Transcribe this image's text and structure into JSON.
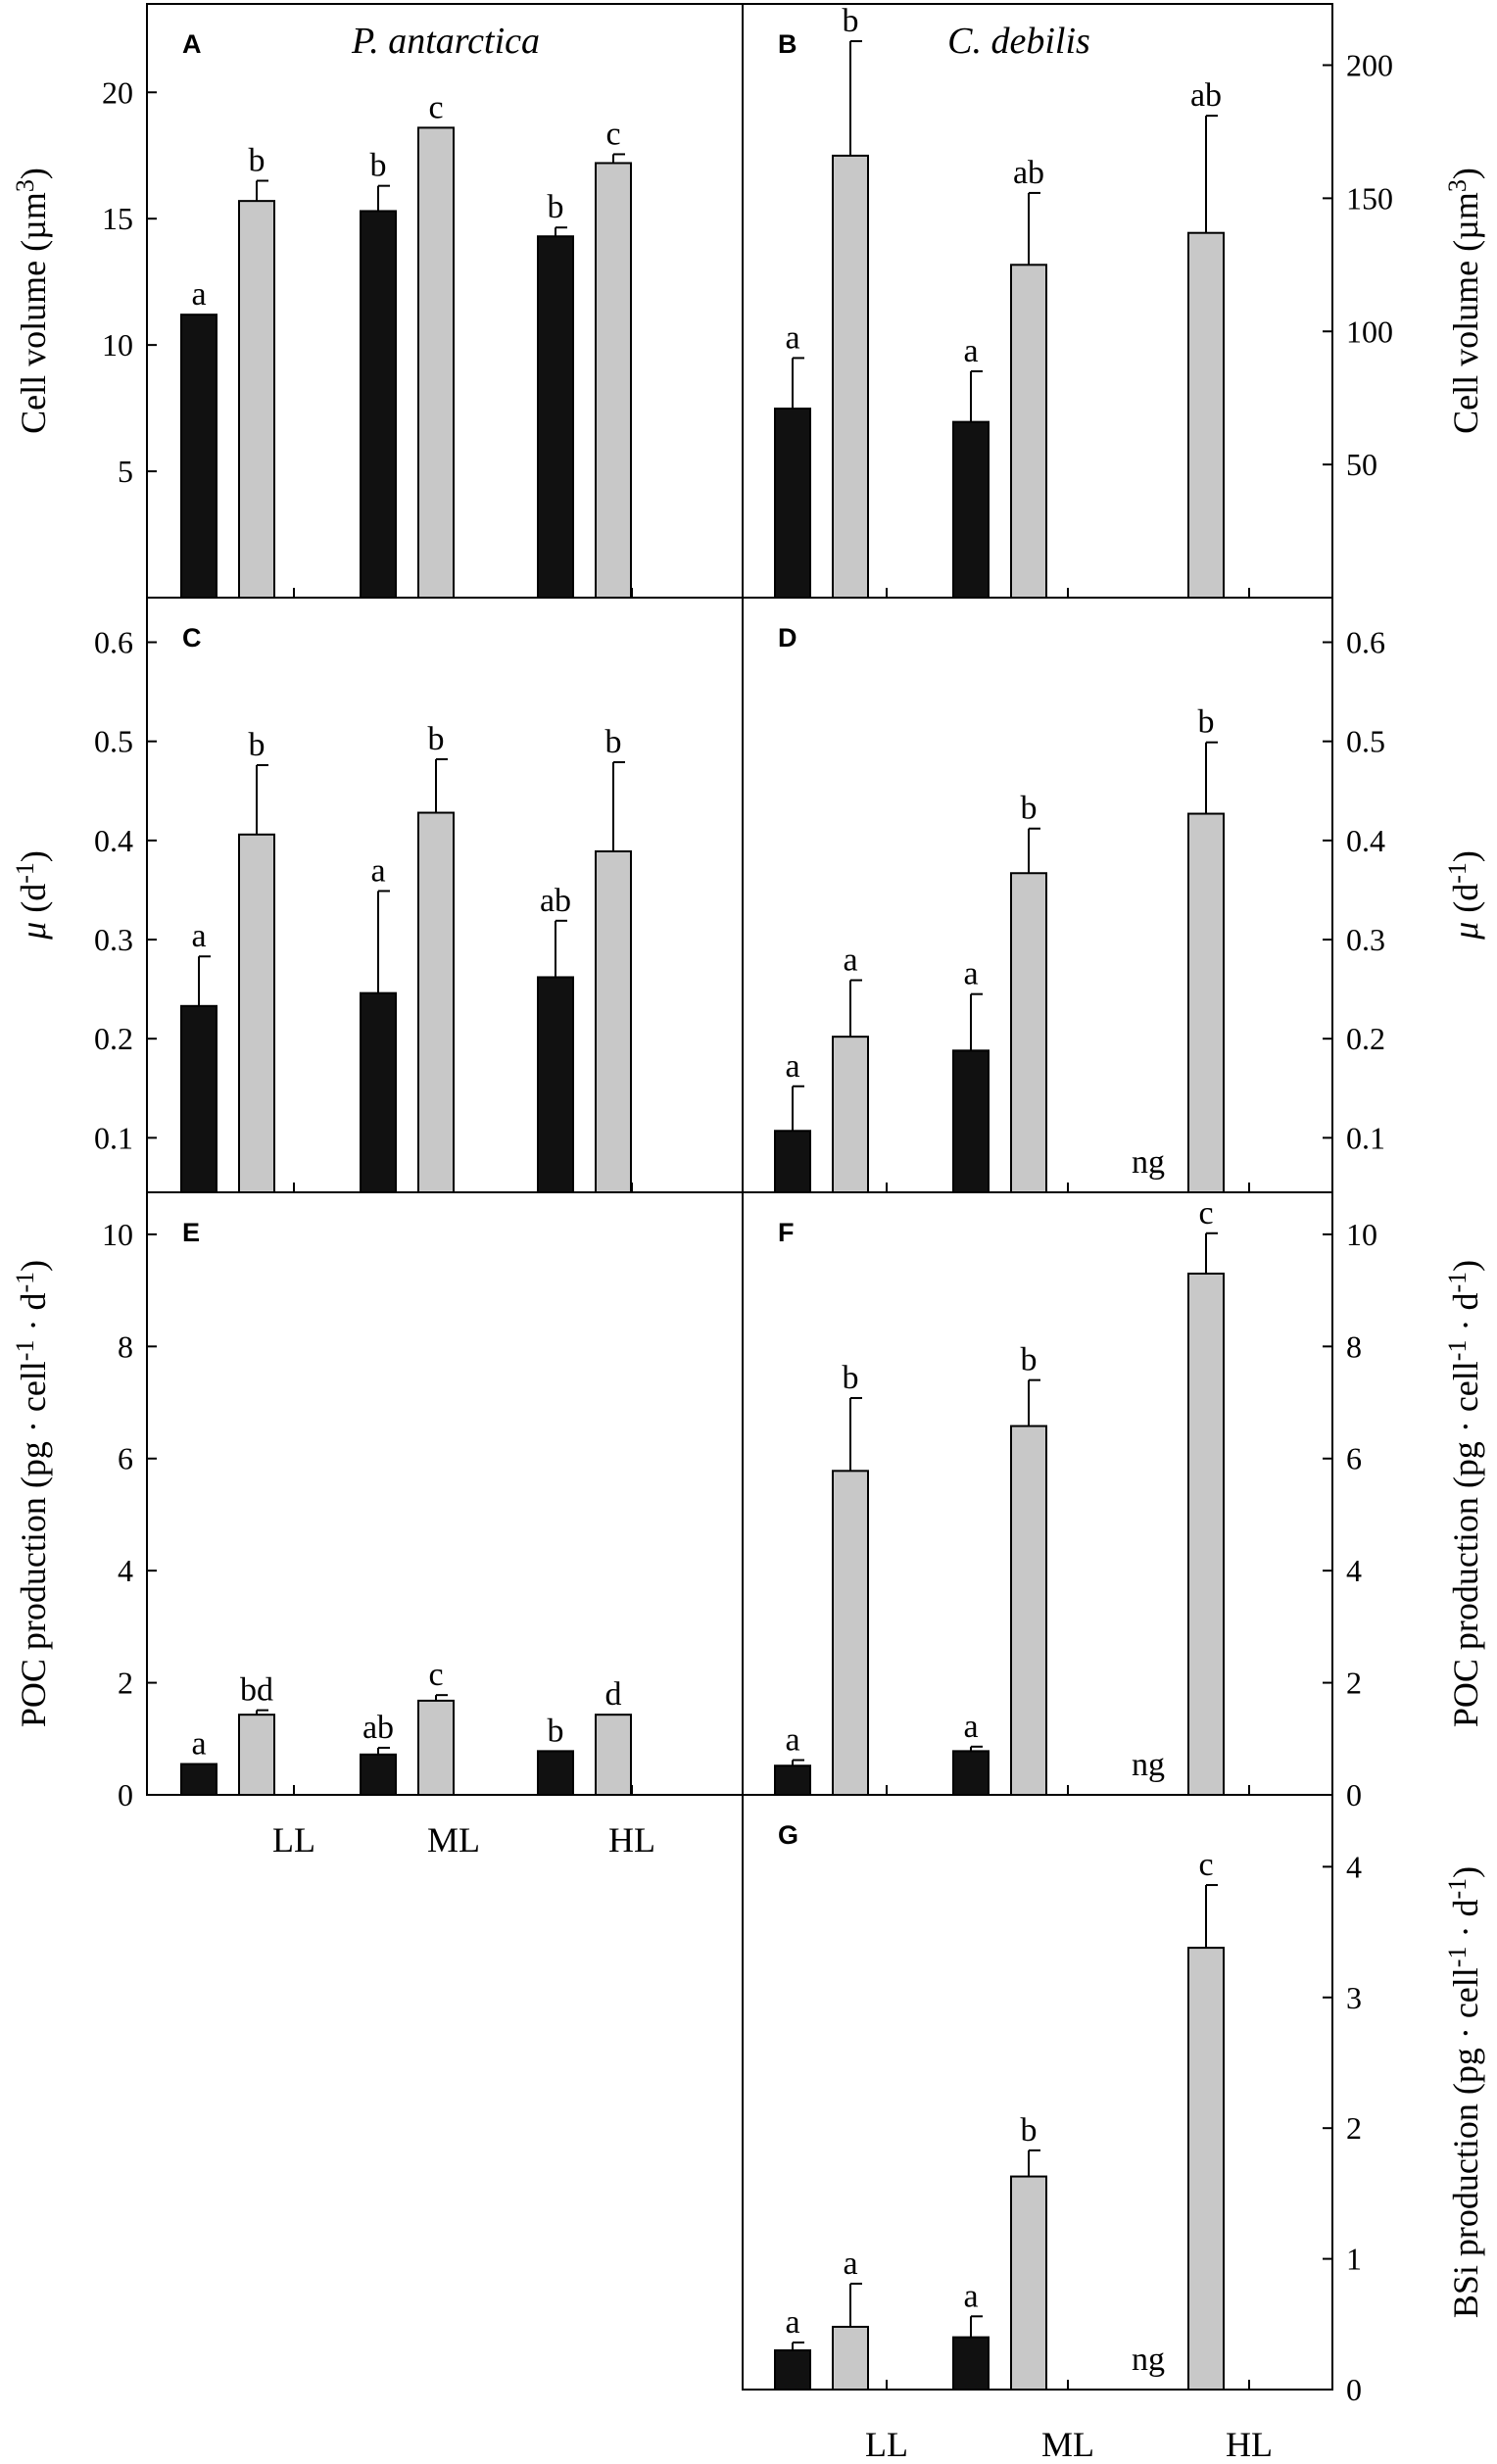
{
  "colors": {
    "dark": "#111111",
    "light": "#c8c8c8",
    "axis": "#000000"
  },
  "chart_data": [
    {
      "id": "A",
      "type": "bar",
      "species": "P. antarctica",
      "ylabel": "Cell volume (µm³)",
      "ylabel_parts": [
        "Cell volume (µm",
        "3",
        ")"
      ],
      "ylim": [
        0,
        23.5
      ],
      "yticks": [
        5,
        10,
        15,
        20
      ],
      "tick_labels": [
        "5",
        "10",
        "15",
        "20"
      ],
      "categories": [
        "LL",
        "ML",
        "HL"
      ],
      "series": [
        {
          "name": "dark",
          "values": [
            11.2,
            15.3,
            14.3
          ],
          "errors": [
            0,
            1.0,
            0.35
          ],
          "letters": [
            "a",
            "b",
            "b"
          ]
        },
        {
          "name": "light",
          "values": [
            15.7,
            18.6,
            17.2
          ],
          "errors": [
            0.8,
            0,
            0.35
          ],
          "letters": [
            "b",
            "c",
            "c"
          ]
        }
      ]
    },
    {
      "id": "B",
      "type": "bar",
      "species": "C. debilis",
      "ylabel": "Cell volume (µm³)",
      "ylabel_parts": [
        "Cell volume (µm",
        "3",
        ")"
      ],
      "ylim": [
        0,
        223
      ],
      "yticks": [
        50,
        100,
        150,
        200
      ],
      "tick_labels": [
        "50",
        "100",
        "150",
        "200"
      ],
      "categories": [
        "LL",
        "ML",
        "HL"
      ],
      "series": [
        {
          "name": "dark",
          "values": [
            71,
            66,
            null
          ],
          "errors": [
            19,
            19,
            0
          ],
          "letters": [
            "a",
            "a",
            ""
          ]
        },
        {
          "name": "light",
          "values": [
            166,
            125,
            137
          ],
          "errors": [
            43,
            27,
            44
          ],
          "letters": [
            "b",
            "ab",
            "ab"
          ]
        }
      ]
    },
    {
      "id": "C",
      "type": "bar",
      "ylabel": "μ (d⁻¹)",
      "ylabel_parts": [
        "μ",
        " (d",
        "-1",
        ")"
      ],
      "ylim": [
        0.045,
        0.645
      ],
      "yticks": [
        0.1,
        0.2,
        0.3,
        0.4,
        0.5,
        0.6
      ],
      "tick_labels": [
        "0.1",
        "0.2",
        "0.3",
        "0.4",
        "0.5",
        "0.6"
      ],
      "categories": [
        "LL",
        "ML",
        "HL"
      ],
      "series": [
        {
          "name": "dark",
          "values": [
            0.233,
            0.246,
            0.262
          ],
          "errors": [
            0.05,
            0.103,
            0.057
          ],
          "letters": [
            "a",
            "a",
            "ab"
          ]
        },
        {
          "name": "light",
          "values": [
            0.406,
            0.428,
            0.389
          ],
          "errors": [
            0.07,
            0.054,
            0.09
          ],
          "letters": [
            "b",
            "b",
            "b"
          ]
        }
      ]
    },
    {
      "id": "D",
      "type": "bar",
      "ylabel": "μ (d⁻¹)",
      "ylabel_parts": [
        "μ",
        " (d",
        "-1",
        ")"
      ],
      "ylim": [
        0.045,
        0.645
      ],
      "yticks": [
        0.1,
        0.2,
        0.3,
        0.4,
        0.5,
        0.6
      ],
      "tick_labels": [
        "0.1",
        "0.2",
        "0.3",
        "0.4",
        "0.5",
        "0.6"
      ],
      "categories": [
        "LL",
        "ML",
        "HL"
      ],
      "series": [
        {
          "name": "dark",
          "values": [
            0.107,
            0.188,
            null
          ],
          "errors": [
            0.045,
            0.057,
            0
          ],
          "letters": [
            "a",
            "a",
            "ng"
          ]
        },
        {
          "name": "light",
          "values": [
            0.202,
            0.367,
            0.427
          ],
          "errors": [
            0.057,
            0.045,
            0.072
          ],
          "letters": [
            "a",
            "b",
            "b"
          ]
        }
      ]
    },
    {
      "id": "E",
      "type": "bar",
      "ylabel": "POC production (pg · cell⁻¹ · d⁻¹)",
      "ylabel_parts": [
        "POC production (pg · cell",
        "-1",
        " · d",
        "-1",
        ")"
      ],
      "ylim": [
        0,
        10.75
      ],
      "yticks": [
        0,
        2,
        4,
        6,
        8,
        10
      ],
      "tick_labels": [
        "0",
        "2",
        "4",
        "6",
        "8",
        "10"
      ],
      "categories": [
        "LL",
        "ML",
        "HL"
      ],
      "series": [
        {
          "name": "dark",
          "values": [
            0.55,
            0.72,
            0.78
          ],
          "errors": [
            0,
            0.12,
            0
          ],
          "letters": [
            "a",
            "ab",
            "b"
          ]
        },
        {
          "name": "light",
          "values": [
            1.43,
            1.68,
            1.43
          ],
          "errors": [
            0.08,
            0.1,
            0
          ],
          "letters": [
            "bd",
            "c",
            "d"
          ]
        }
      ]
    },
    {
      "id": "F",
      "type": "bar",
      "ylabel": "POC production (pg · cell⁻¹ · d⁻¹)",
      "ylabel_parts": [
        "POC production (pg · cell",
        "-1",
        " · d",
        "-1",
        ")"
      ],
      "ylim": [
        0,
        10.75
      ],
      "yticks": [
        0,
        2,
        4,
        6,
        8,
        10
      ],
      "tick_labels": [
        "0",
        "2",
        "4",
        "6",
        "8",
        "10"
      ],
      "categories": [
        "LL",
        "ML",
        "HL"
      ],
      "series": [
        {
          "name": "dark",
          "values": [
            0.52,
            0.78,
            null
          ],
          "errors": [
            0.1,
            0.08,
            0
          ],
          "letters": [
            "a",
            "a",
            "ng"
          ]
        },
        {
          "name": "light",
          "values": [
            5.78,
            6.58,
            9.3
          ],
          "errors": [
            1.3,
            0.82,
            0.72
          ],
          "letters": [
            "b",
            "b",
            "c"
          ]
        }
      ]
    },
    {
      "id": "G",
      "type": "bar",
      "ylabel": "BSi production (pg · cell⁻¹ · d⁻¹)",
      "ylabel_parts": [
        "BSi production (pg · cell",
        "-1",
        " · d",
        "-1",
        ")"
      ],
      "ylim": [
        0,
        4.55
      ],
      "yticks": [
        0,
        1,
        2,
        3,
        4
      ],
      "tick_labels": [
        "0",
        "1",
        "2",
        "3",
        "4"
      ],
      "categories": [
        "LL",
        "ML",
        "HL"
      ],
      "series": [
        {
          "name": "dark",
          "values": [
            0.3,
            0.4,
            null
          ],
          "errors": [
            0.06,
            0.16,
            0
          ],
          "letters": [
            "a",
            "a",
            "ng"
          ]
        },
        {
          "name": "light",
          "values": [
            0.48,
            1.63,
            3.38
          ],
          "errors": [
            0.33,
            0.2,
            0.48
          ],
          "letters": [
            "a",
            "b",
            "c"
          ]
        }
      ]
    }
  ]
}
